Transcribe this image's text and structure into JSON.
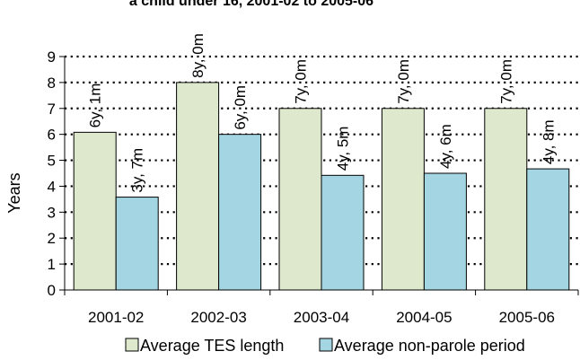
{
  "chart_data": {
    "type": "bar",
    "title": "a child under 16, 2001-02 to 2005-06",
    "xlabel": "",
    "ylabel": "Years",
    "ylim": [
      0,
      9
    ],
    "yticks": [
      "0",
      "1",
      "2",
      "3",
      "4",
      "5",
      "6",
      "7",
      "8",
      "9"
    ],
    "grid": true,
    "legend_position": "bottom",
    "categories": [
      "2001-02",
      "2002-03",
      "2003-04",
      "2004-05",
      "2005-06"
    ],
    "series": [
      {
        "name": "Average TES length",
        "color": "#dde8cd",
        "values": [
          6.08,
          8.0,
          7.0,
          7.0,
          7.0
        ],
        "labels": [
          "6y, 1m",
          "8y, 0m",
          "7y, 0m",
          "7y, 0m",
          "7y, 0m"
        ]
      },
      {
        "name": "Average non-parole period",
        "color": "#a3d6e2",
        "values": [
          3.58,
          6.0,
          4.42,
          4.5,
          4.67
        ],
        "labels": [
          "3y, 7m",
          "6y, 0m",
          "4y, 5m",
          "4y, 6m",
          "4y, 8m"
        ]
      }
    ]
  }
}
